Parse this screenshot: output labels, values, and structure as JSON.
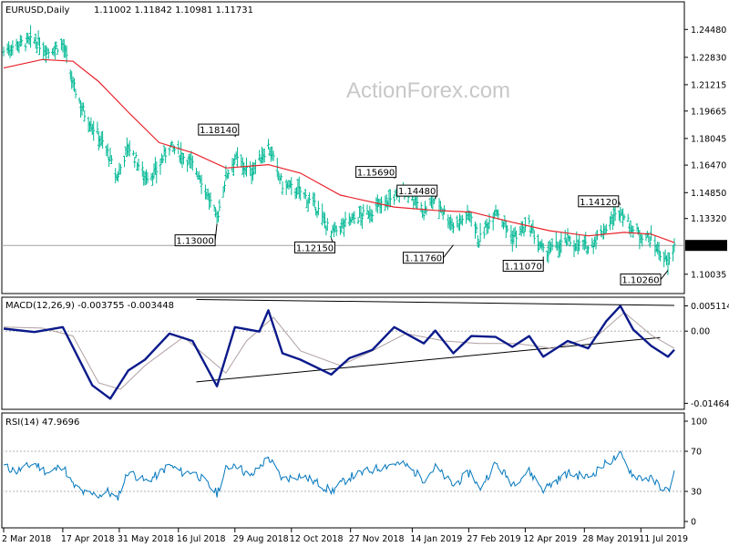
{
  "watermark": "ActionForex.com",
  "chart_data": [
    {
      "type": "ohlc-bar",
      "title": "EURUSD,Daily",
      "ohlc_label": "1.11002 1.11842 1.10981 1.11731",
      "last_price": "1.11731",
      "ylim": [
        1.09,
        1.26
      ],
      "y_ticks": [
        "1.24480",
        "1.22830",
        "1.21215",
        "1.19665",
        "1.18045",
        "1.16470",
        "1.14850",
        "1.13320",
        "1.11731",
        "1.10035"
      ],
      "moving_average_color": "#e8222a",
      "bar_color": "#00b894",
      "annotations": [
        {
          "label": "1.18140",
          "price": 1.1814,
          "date": "2018-08-29"
        },
        {
          "label": "1.13000",
          "price": 1.13,
          "date": "2018-08-15"
        },
        {
          "label": "1.12150",
          "price": 1.1215,
          "date": "2018-11-12"
        },
        {
          "label": "1.15690",
          "price": 1.1569,
          "date": "2018-12-31"
        },
        {
          "label": "1.14480",
          "price": 1.1448,
          "date": "2019-02-01"
        },
        {
          "label": "1.11760",
          "price": 1.1176,
          "date": "2019-02-15"
        },
        {
          "label": "1.11070",
          "price": 1.1107,
          "date": "2019-04-26"
        },
        {
          "label": "1.14120",
          "price": 1.1412,
          "date": "2019-06-25"
        },
        {
          "label": "1.10260",
          "price": 1.1026,
          "date": "2019-08-01"
        }
      ],
      "price_path": [
        [
          "2018-03-02",
          1.232
        ],
        [
          "2018-03-12",
          1.236
        ],
        [
          "2018-03-26",
          1.238
        ],
        [
          "2018-04-06",
          1.232
        ],
        [
          "2018-04-17",
          1.236
        ],
        [
          "2018-04-25",
          1.212
        ],
        [
          "2018-05-04",
          1.195
        ],
        [
          "2018-05-15",
          1.182
        ],
        [
          "2018-05-22",
          1.172
        ],
        [
          "2018-05-29",
          1.157
        ],
        [
          "2018-06-07",
          1.176
        ],
        [
          "2018-06-20",
          1.158
        ],
        [
          "2018-06-28",
          1.16
        ],
        [
          "2018-07-09",
          1.176
        ],
        [
          "2018-07-20",
          1.17
        ],
        [
          "2018-07-27",
          1.165
        ],
        [
          "2018-08-02",
          1.158
        ],
        [
          "2018-08-15",
          1.133
        ],
        [
          "2018-08-22",
          1.158
        ],
        [
          "2018-08-29",
          1.169
        ],
        [
          "2018-09-10",
          1.16
        ],
        [
          "2018-09-24",
          1.176
        ],
        [
          "2018-10-05",
          1.153
        ],
        [
          "2018-10-19",
          1.149
        ],
        [
          "2018-11-02",
          1.138
        ],
        [
          "2018-11-12",
          1.124
        ],
        [
          "2018-11-26",
          1.132
        ],
        [
          "2018-12-10",
          1.136
        ],
        [
          "2018-12-31",
          1.146
        ],
        [
          "2019-01-09",
          1.15
        ],
        [
          "2019-01-23",
          1.137
        ],
        [
          "2019-02-01",
          1.145
        ],
        [
          "2019-02-15",
          1.129
        ],
        [
          "2019-03-01",
          1.136
        ],
        [
          "2019-03-07",
          1.12
        ],
        [
          "2019-03-20",
          1.139
        ],
        [
          "2019-04-02",
          1.122
        ],
        [
          "2019-04-15",
          1.129
        ],
        [
          "2019-04-26",
          1.113
        ],
        [
          "2019-05-15",
          1.12
        ],
        [
          "2019-05-31",
          1.116
        ],
        [
          "2019-06-14",
          1.128
        ],
        [
          "2019-06-25",
          1.138
        ],
        [
          "2019-07-05",
          1.126
        ],
        [
          "2019-07-19",
          1.121
        ],
        [
          "2019-08-01",
          1.106
        ],
        [
          "2019-08-06",
          1.117
        ]
      ],
      "ma_path": [
        [
          "2018-03-02",
          1.222
        ],
        [
          "2018-04-01",
          1.227
        ],
        [
          "2018-04-25",
          1.226
        ],
        [
          "2018-05-15",
          1.214
        ],
        [
          "2018-06-07",
          1.196
        ],
        [
          "2018-07-01",
          1.178
        ],
        [
          "2018-07-27",
          1.172
        ],
        [
          "2018-08-22",
          1.163
        ],
        [
          "2018-09-24",
          1.165
        ],
        [
          "2018-10-19",
          1.16
        ],
        [
          "2018-11-19",
          1.147
        ],
        [
          "2018-12-31",
          1.14
        ],
        [
          "2019-02-01",
          1.138
        ],
        [
          "2019-03-01",
          1.137
        ],
        [
          "2019-04-02",
          1.131
        ],
        [
          "2019-05-01",
          1.126
        ],
        [
          "2019-05-31",
          1.123
        ],
        [
          "2019-06-28",
          1.125
        ],
        [
          "2019-07-19",
          1.124
        ],
        [
          "2019-08-06",
          1.119
        ]
      ]
    },
    {
      "type": "line",
      "title": "MACD(12,26,9) -0.003755 -0.003448",
      "y_ticks": [
        "0.005114",
        "0.00",
        "-0.014647"
      ],
      "ylim": [
        -0.0155,
        0.0065
      ],
      "macd_color": "#0b1a8a",
      "signal_color": "#b0a0a0",
      "macd_path": [
        [
          "2018-03-02",
          0.0005
        ],
        [
          "2018-03-26",
          -0.0002
        ],
        [
          "2018-04-17",
          0.0008
        ],
        [
          "2018-05-10",
          -0.011
        ],
        [
          "2018-05-24",
          -0.0137
        ],
        [
          "2018-06-07",
          -0.008
        ],
        [
          "2018-06-20",
          -0.0058
        ],
        [
          "2018-07-09",
          -0.0005
        ],
        [
          "2018-07-27",
          -0.002
        ],
        [
          "2018-08-15",
          -0.0112
        ],
        [
          "2018-08-29",
          0.0008
        ],
        [
          "2018-09-17",
          -0.0001
        ],
        [
          "2018-09-24",
          0.0042
        ],
        [
          "2018-10-05",
          -0.0045
        ],
        [
          "2018-10-19",
          -0.0058
        ],
        [
          "2018-11-12",
          -0.0088
        ],
        [
          "2018-11-26",
          -0.0055
        ],
        [
          "2018-12-14",
          -0.0038
        ],
        [
          "2018-12-31",
          0.0008
        ],
        [
          "2019-01-23",
          -0.0025
        ],
        [
          "2019-02-01",
          0.0001
        ],
        [
          "2019-02-15",
          -0.0045
        ],
        [
          "2019-03-01",
          -0.001
        ],
        [
          "2019-03-20",
          -0.0012
        ],
        [
          "2019-04-02",
          -0.0032
        ],
        [
          "2019-04-15",
          -0.001
        ],
        [
          "2019-04-26",
          -0.0052
        ],
        [
          "2019-05-15",
          -0.002
        ],
        [
          "2019-05-31",
          -0.0035
        ],
        [
          "2019-06-14",
          0.002
        ],
        [
          "2019-06-25",
          0.0051
        ],
        [
          "2019-07-05",
          0.0003
        ],
        [
          "2019-07-19",
          -0.003
        ],
        [
          "2019-08-01",
          -0.0052
        ],
        [
          "2019-08-06",
          -0.0038
        ]
      ],
      "signal_path": [
        [
          "2018-03-02",
          0.0008
        ],
        [
          "2018-04-01",
          0.0006
        ],
        [
          "2018-04-25",
          -0.001
        ],
        [
          "2018-05-15",
          -0.0105
        ],
        [
          "2018-06-01",
          -0.0118
        ],
        [
          "2018-06-20",
          -0.007
        ],
        [
          "2018-07-20",
          -0.0012
        ],
        [
          "2018-08-22",
          -0.0085
        ],
        [
          "2018-09-07",
          -0.002
        ],
        [
          "2018-09-28",
          0.0028
        ],
        [
          "2018-10-19",
          -0.004
        ],
        [
          "2018-11-19",
          -0.007
        ],
        [
          "2018-12-14",
          -0.004
        ],
        [
          "2019-01-09",
          -0.0005
        ],
        [
          "2019-02-08",
          -0.002
        ],
        [
          "2019-03-07",
          -0.0025
        ],
        [
          "2019-04-05",
          -0.0025
        ],
        [
          "2019-05-03",
          -0.0035
        ],
        [
          "2019-06-07",
          -0.001
        ],
        [
          "2019-06-28",
          0.0038
        ],
        [
          "2019-07-19",
          -0.0008
        ],
        [
          "2019-08-06",
          -0.0035
        ]
      ],
      "trendlines": [
        [
          [
            "2018-07-30",
            -0.0103
          ],
          [
            "2019-07-26",
            -0.0013
          ]
        ],
        [
          [
            "2018-07-30",
            0.0064
          ],
          [
            "2019-08-06",
            0.0052
          ]
        ]
      ]
    },
    {
      "type": "line",
      "title": "RSI(14) 47.9696",
      "y_ticks": [
        "100",
        "70",
        "30",
        "0"
      ],
      "ylim": [
        0,
        100
      ],
      "rsi_color": "#0277bd",
      "rsi_path": [
        [
          "2018-03-02",
          55
        ],
        [
          "2018-03-12",
          50
        ],
        [
          "2018-03-26",
          58
        ],
        [
          "2018-04-06",
          48
        ],
        [
          "2018-04-17",
          56
        ],
        [
          "2018-04-25",
          36
        ],
        [
          "2018-05-04",
          28
        ],
        [
          "2018-05-15",
          26
        ],
        [
          "2018-05-22",
          30
        ],
        [
          "2018-05-29",
          22
        ],
        [
          "2018-06-07",
          50
        ],
        [
          "2018-06-20",
          40
        ],
        [
          "2018-06-28",
          45
        ],
        [
          "2018-07-09",
          56
        ],
        [
          "2018-07-20",
          48
        ],
        [
          "2018-07-27",
          50
        ],
        [
          "2018-08-02",
          44
        ],
        [
          "2018-08-15",
          28
        ],
        [
          "2018-08-22",
          52
        ],
        [
          "2018-08-29",
          58
        ],
        [
          "2018-09-10",
          44
        ],
        [
          "2018-09-24",
          64
        ],
        [
          "2018-10-05",
          42
        ],
        [
          "2018-10-19",
          46
        ],
        [
          "2018-11-02",
          38
        ],
        [
          "2018-11-12",
          30
        ],
        [
          "2018-11-26",
          44
        ],
        [
          "2018-12-10",
          50
        ],
        [
          "2018-12-31",
          58
        ],
        [
          "2019-01-09",
          56
        ],
        [
          "2019-01-23",
          42
        ],
        [
          "2019-02-01",
          54
        ],
        [
          "2019-02-15",
          36
        ],
        [
          "2019-03-01",
          50
        ],
        [
          "2019-03-07",
          32
        ],
        [
          "2019-03-20",
          58
        ],
        [
          "2019-04-02",
          38
        ],
        [
          "2019-04-15",
          50
        ],
        [
          "2019-04-26",
          32
        ],
        [
          "2019-05-15",
          48
        ],
        [
          "2019-05-31",
          44
        ],
        [
          "2019-06-14",
          58
        ],
        [
          "2019-06-25",
          66
        ],
        [
          "2019-07-05",
          46
        ],
        [
          "2019-07-19",
          42
        ],
        [
          "2019-08-01",
          30
        ],
        [
          "2019-08-06",
          48
        ]
      ]
    }
  ],
  "x_axis": {
    "labels": [
      "2 Mar 2018",
      "17 Apr 2018",
      "31 May 2018",
      "16 Jul 2018",
      "29 Aug 2018",
      "12 Oct 2018",
      "27 Nov 2018",
      "14 Jan 2019",
      "27 Feb 2019",
      "12 Apr 2019",
      "28 May 2019",
      "11 Jul 2019"
    ],
    "dates": [
      "2018-03-02",
      "2018-04-17",
      "2018-05-31",
      "2018-07-16",
      "2018-08-29",
      "2018-10-12",
      "2018-11-27",
      "2019-01-14",
      "2019-02-27",
      "2019-04-12",
      "2019-05-28",
      "2019-07-11"
    ]
  }
}
